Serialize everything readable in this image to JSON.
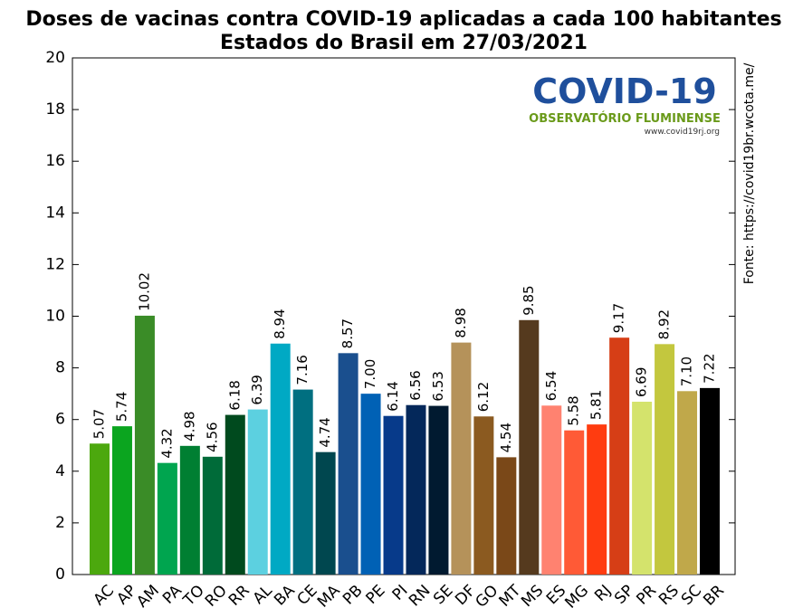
{
  "chart_data": {
    "type": "bar",
    "title": "Doses de vacinas contra COVID-19 aplicadas a cada 100 habitantes",
    "subtitle": "Estados do Brasil em 27/03/2021",
    "source": "Fonte: https://covid19br.wcota.me/",
    "logo": {
      "name": "COVID-19",
      "org": "OBSERVATÓRIO FLUMINENSE",
      "url": "www.covid19rj.org"
    },
    "categories": [
      "AC",
      "AP",
      "AM",
      "PA",
      "TO",
      "RO",
      "RR",
      "AL",
      "BA",
      "CE",
      "MA",
      "PB",
      "PE",
      "PI",
      "RN",
      "SE",
      "DF",
      "GO",
      "MT",
      "MS",
      "ES",
      "MG",
      "RJ",
      "SP",
      "PR",
      "RS",
      "SC",
      "BR"
    ],
    "values": [
      5.07,
      5.74,
      10.02,
      4.32,
      4.98,
      4.56,
      6.18,
      6.39,
      8.94,
      7.16,
      4.74,
      8.57,
      7,
      6.14,
      6.56,
      6.53,
      8.98,
      6.12,
      4.54,
      9.85,
      6.54,
      5.58,
      5.81,
      9.17,
      6.69,
      8.92,
      7.1,
      7.22
    ],
    "value_labels": [
      "5.07",
      "5.74",
      "10.02",
      "4.32",
      "4.98",
      "4.56",
      "6.18",
      "6.39",
      "8.94",
      "7.16",
      "4.74",
      "8.57",
      "7.00",
      "6.14",
      "6.56",
      "6.53",
      "8.98",
      "6.12",
      "4.54",
      "9.85",
      "6.54",
      "5.58",
      "5.81",
      "9.17",
      "6.69",
      "8.92",
      "7.10",
      "7.22"
    ],
    "colors": [
      "#4ca80e",
      "#0ba51f",
      "#3a8c27",
      "#00a54f",
      "#007f32",
      "#006b39",
      "#004a1e",
      "#5cd0e0",
      "#00a9c4",
      "#006f80",
      "#00474f",
      "#1a4f8e",
      "#0061b5",
      "#073a8a",
      "#04285a",
      "#011a30",
      "#b5925a",
      "#8b5a20",
      "#7a4818",
      "#553a1e",
      "#ff8270",
      "#ff5a36",
      "#ff3c10",
      "#d63e16",
      "#d4e36c",
      "#c3c73e",
      "#c0a84a",
      "#000000"
    ],
    "ylim": [
      0,
      20
    ],
    "yticks": [
      0,
      2,
      4,
      6,
      8,
      10,
      12,
      14,
      16,
      18,
      20
    ],
    "grid": false
  }
}
